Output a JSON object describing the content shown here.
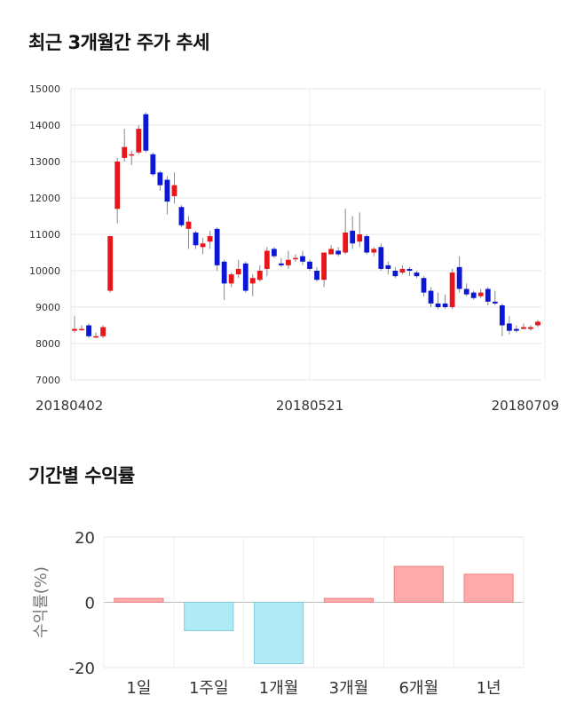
{
  "candle_chart": {
    "title": "최근 3개월간 주가 추세",
    "chart_data": {
      "type": "candlestick",
      "ylim": [
        7000,
        15000
      ],
      "y_ticks": [
        7000,
        8000,
        9000,
        10000,
        11000,
        12000,
        13000,
        14000,
        15000
      ],
      "x_tick_labels": [
        {
          "label": "20180402",
          "index": 0
        },
        {
          "label": "20180521",
          "index": 33
        },
        {
          "label": "20180709",
          "index": 66
        }
      ],
      "colors": {
        "up": "#e8151b",
        "down": "#0b16d6",
        "wick": "#888888"
      },
      "candles": [
        [
          8350,
          8400,
          8300,
          8750
        ],
        [
          8400,
          8400,
          8350,
          8500
        ],
        [
          8500,
          8200,
          8150,
          8550
        ],
        [
          8200,
          8200,
          8150,
          8300
        ],
        [
          8200,
          8450,
          8150,
          8500
        ],
        [
          9450,
          10950,
          9400,
          10950
        ],
        [
          11700,
          13000,
          11300,
          13100
        ],
        [
          13100,
          13400,
          13000,
          13900
        ],
        [
          13200,
          13200,
          12900,
          13300
        ],
        [
          13250,
          13900,
          13200,
          14000
        ],
        [
          14300,
          13300,
          13250,
          14350
        ],
        [
          13200,
          12650,
          12600,
          13250
        ],
        [
          12700,
          12350,
          12200,
          12750
        ],
        [
          12500,
          11900,
          11550,
          12600
        ],
        [
          12050,
          12350,
          11850,
          12700
        ],
        [
          11750,
          11250,
          11200,
          11800
        ],
        [
          11150,
          11350,
          10600,
          11500
        ],
        [
          11050,
          10700,
          10600,
          11100
        ],
        [
          10650,
          10750,
          10450,
          10900
        ],
        [
          10800,
          10950,
          10600,
          11100
        ],
        [
          11150,
          10150,
          10000,
          11200
        ],
        [
          10250,
          9650,
          9200,
          10300
        ],
        [
          9650,
          9900,
          9550,
          9950
        ],
        [
          9900,
          10050,
          9800,
          10300
        ],
        [
          10200,
          9450,
          9400,
          10250
        ],
        [
          9650,
          9800,
          9300,
          9900
        ],
        [
          9750,
          10000,
          9700,
          10150
        ],
        [
          10050,
          10550,
          9850,
          10650
        ],
        [
          10600,
          10400,
          10350,
          10650
        ],
        [
          10200,
          10150,
          10100,
          10350
        ],
        [
          10150,
          10300,
          10050,
          10550
        ],
        [
          10350,
          10350,
          10250,
          10450
        ],
        [
          10400,
          10250,
          10150,
          10550
        ],
        [
          10250,
          10050,
          10000,
          10300
        ],
        [
          10000,
          9750,
          9700,
          10100
        ],
        [
          9750,
          10500,
          9550,
          10500
        ],
        [
          10450,
          10600,
          10450,
          10700
        ],
        [
          10550,
          10450,
          10400,
          10650
        ],
        [
          10500,
          11050,
          10450,
          11700
        ],
        [
          11100,
          10750,
          10600,
          11500
        ],
        [
          10800,
          11000,
          10650,
          11600
        ],
        [
          10950,
          10500,
          10450,
          11000
        ],
        [
          10500,
          10600,
          10400,
          10650
        ],
        [
          10650,
          10050,
          10000,
          10750
        ],
        [
          10150,
          10050,
          9900,
          10250
        ],
        [
          10000,
          9850,
          9800,
          10100
        ],
        [
          9950,
          10050,
          9900,
          10150
        ],
        [
          10050,
          10000,
          9850,
          10100
        ],
        [
          9950,
          9850,
          9800,
          10000
        ],
        [
          9800,
          9400,
          9300,
          9850
        ],
        [
          9450,
          9100,
          9000,
          9550
        ],
        [
          9100,
          9000,
          8950,
          9400
        ],
        [
          9100,
          9000,
          8950,
          9350
        ],
        [
          9000,
          9950,
          8950,
          10050
        ],
        [
          10100,
          9500,
          9400,
          10400
        ],
        [
          9500,
          9350,
          9300,
          9650
        ],
        [
          9400,
          9250,
          9200,
          9450
        ],
        [
          9300,
          9400,
          9250,
          9500
        ],
        [
          9500,
          9150,
          9050,
          9550
        ],
        [
          9150,
          9100,
          9050,
          9450
        ],
        [
          9050,
          8500,
          8200,
          9100
        ],
        [
          8550,
          8350,
          8250,
          8750
        ],
        [
          8400,
          8350,
          8300,
          8500
        ],
        [
          8400,
          8450,
          8400,
          8550
        ],
        [
          8400,
          8450,
          8350,
          8500
        ],
        [
          8500,
          8600,
          8450,
          8650
        ]
      ]
    }
  },
  "bar_chart": {
    "title": "기간별 수익률",
    "chart_data": {
      "type": "bar",
      "categories": [
        "1일",
        "1주일",
        "1개월",
        "3개월",
        "6개월",
        "1년"
      ],
      "values": [
        1.2,
        -8.7,
        -18.8,
        1.2,
        11.0,
        8.6
      ],
      "ylim": [
        -20,
        20
      ],
      "y_ticks": [
        -20,
        0,
        20
      ],
      "ylabel": "수익률(%)",
      "colors": {
        "positive": "#ffaaaa",
        "positive_edge": "#f08080",
        "negative": "#b0eaf6",
        "negative_edge": "#80cfe0"
      }
    }
  }
}
